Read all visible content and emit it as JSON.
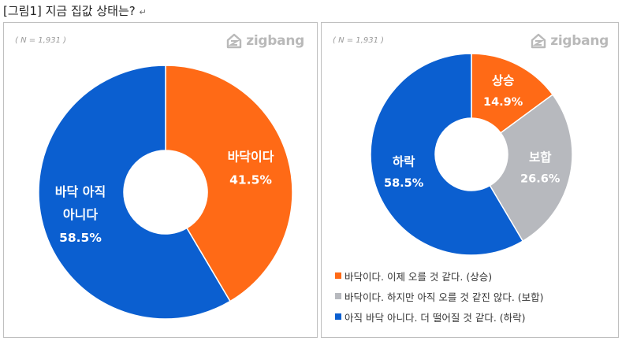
{
  "title": "[그림1] 지금 집값 상태는?",
  "title_mark": "↵",
  "brand": "zigbang",
  "colors": {
    "orange": "#FF6A16",
    "blue": "#0B5FD0",
    "gray": "#B7B9BE"
  },
  "chart_data": [
    {
      "type": "pie",
      "donut": true,
      "n_label": "( N = 1,931 )",
      "slices": [
        {
          "label_lines": [
            "바닥이다"
          ],
          "value": 41.5,
          "value_label": "41.5%",
          "color": "#FF6A16"
        },
        {
          "label_lines": [
            "바닥 아직",
            "아니다"
          ],
          "value": 58.5,
          "value_label": "58.5%",
          "color": "#0B5FD0"
        }
      ]
    },
    {
      "type": "pie",
      "donut": true,
      "n_label": "( N = 1,931 )",
      "slices": [
        {
          "label_lines": [
            "상승"
          ],
          "value": 14.9,
          "value_label": "14.9%",
          "color": "#FF6A16"
        },
        {
          "label_lines": [
            "보합"
          ],
          "value": 26.6,
          "value_label": "26.6%",
          "color": "#B7B9BE"
        },
        {
          "label_lines": [
            "하락"
          ],
          "value": 58.5,
          "value_label": "58.5%",
          "color": "#0B5FD0"
        }
      ],
      "legend": [
        {
          "text": "바닥이다. 이제 오를 것 같다. (상승)",
          "color": "#FF6A16"
        },
        {
          "text": "바닥이다. 하지만 아직 오를 것 같진 않다. (보합)",
          "color": "#B7B9BE"
        },
        {
          "text": "아직 바닥 아니다. 더 떨어질 것 같다. (하락)",
          "color": "#0B5FD0"
        }
      ],
      "legend_placement": "bottom"
    }
  ]
}
